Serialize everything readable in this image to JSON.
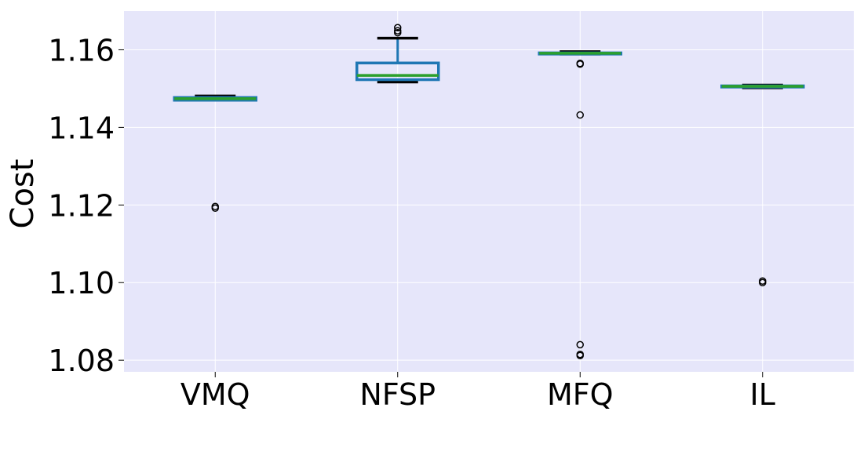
{
  "chart_data": {
    "type": "box",
    "title": "",
    "xlabel": "",
    "ylabel": "Cost",
    "ylim": [
      1.077,
      1.17
    ],
    "yticks": [
      1.08,
      1.1,
      1.12,
      1.14,
      1.16
    ],
    "ytick_labels": [
      "1.08",
      "1.10",
      "1.12",
      "1.14",
      "1.16"
    ],
    "categories": [
      "VMQ",
      "NFSP",
      "MFQ",
      "IL"
    ],
    "grid": true,
    "background_color": "#e6e6fa",
    "box_color": "#1f77b4",
    "median_color": "#2ca02c",
    "whisker_color": "#000000",
    "boxes": [
      {
        "label": "VMQ",
        "whislo": 1.147,
        "q1": 1.147,
        "med": 1.1474,
        "q3": 1.1477,
        "whishi": 1.1481,
        "fliers": [
          1.1192,
          1.1196
        ]
      },
      {
        "label": "NFSP",
        "whislo": 1.1517,
        "q1": 1.1523,
        "med": 1.1534,
        "q3": 1.1566,
        "whishi": 1.163,
        "fliers": [
          1.1644,
          1.1649,
          1.1657
        ]
      },
      {
        "label": "MFQ",
        "whislo": 1.1589,
        "q1": 1.1589,
        "med": 1.1591,
        "q3": 1.1592,
        "whishi": 1.1595,
        "fliers": [
          1.1563,
          1.1565,
          1.1432,
          1.084,
          1.0815,
          1.0812
        ]
      },
      {
        "label": "IL",
        "whislo": 1.1502,
        "q1": 1.1504,
        "med": 1.1506,
        "q3": 1.1507,
        "whishi": 1.1509,
        "fliers": [
          1.1,
          1.1004
        ]
      }
    ]
  }
}
